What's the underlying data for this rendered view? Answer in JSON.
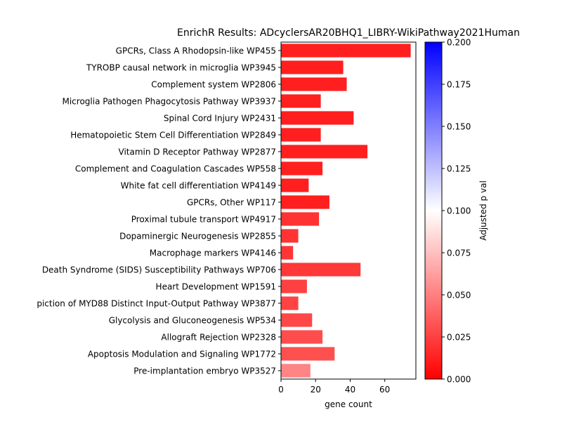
{
  "chart_data": {
    "type": "bar",
    "orientation": "horizontal",
    "title": "EnrichR Results: ADcyclersAR20BHQ1_LIBRY-WikiPathway2021Human",
    "xlabel": "gene count",
    "ylabel": "",
    "xlim": [
      0,
      78
    ],
    "x_ticks": [
      0,
      20,
      40,
      60
    ],
    "grid": false,
    "categories": [
      "GPCRs, Class A Rhodopsin-like WP455",
      "TYROBP causal network in microglia WP3945",
      "Complement system WP2806",
      "Microglia Pathogen Phagocytosis Pathway WP3937",
      "Spinal Cord Injury WP2431",
      "Hematopoietic Stem Cell Differentiation WP2849",
      "Vitamin D Receptor Pathway WP2877",
      "Complement and Coagulation Cascades WP558",
      "White fat cell differentiation WP4149",
      "GPCRs, Other WP117",
      "Proximal tubule transport WP4917",
      "Dopaminergic Neurogenesis WP2855",
      "Macrophage markers WP4146",
      "Death Syndrome (SIDS) Susceptibility Pathways WP706",
      "Heart Development WP1591",
      "piction of MYD88 Distinct Input-Output Pathway WP3877",
      "Glycolysis and Gluconeogenesis WP534",
      "Allograft Rejection WP2328",
      "Apoptosis Modulation and Signaling WP1772",
      "Pre-implantation embryo WP3527"
    ],
    "values": [
      75,
      36,
      38,
      23,
      42,
      23,
      50,
      24,
      16,
      28,
      22,
      10,
      7,
      46,
      15,
      10,
      18,
      24,
      31,
      17
    ],
    "adjusted_p_values": [
      0.0,
      0.0,
      0.0,
      0.0,
      0.0,
      0.0,
      0.0,
      0.0,
      0.0,
      0.0,
      0.008,
      0.009,
      0.01,
      0.011,
      0.015,
      0.016,
      0.018,
      0.02,
      0.022,
      0.045
    ],
    "colorbar": {
      "label": "Adjusted p val",
      "range": [
        0,
        0.2
      ],
      "ticks": [
        "0.000",
        "0.025",
        "0.050",
        "0.075",
        "0.100",
        "0.125",
        "0.150",
        "0.175",
        "0.200"
      ],
      "colormap": [
        "#ff0000",
        "#ffffff",
        "#0000ff"
      ]
    }
  }
}
